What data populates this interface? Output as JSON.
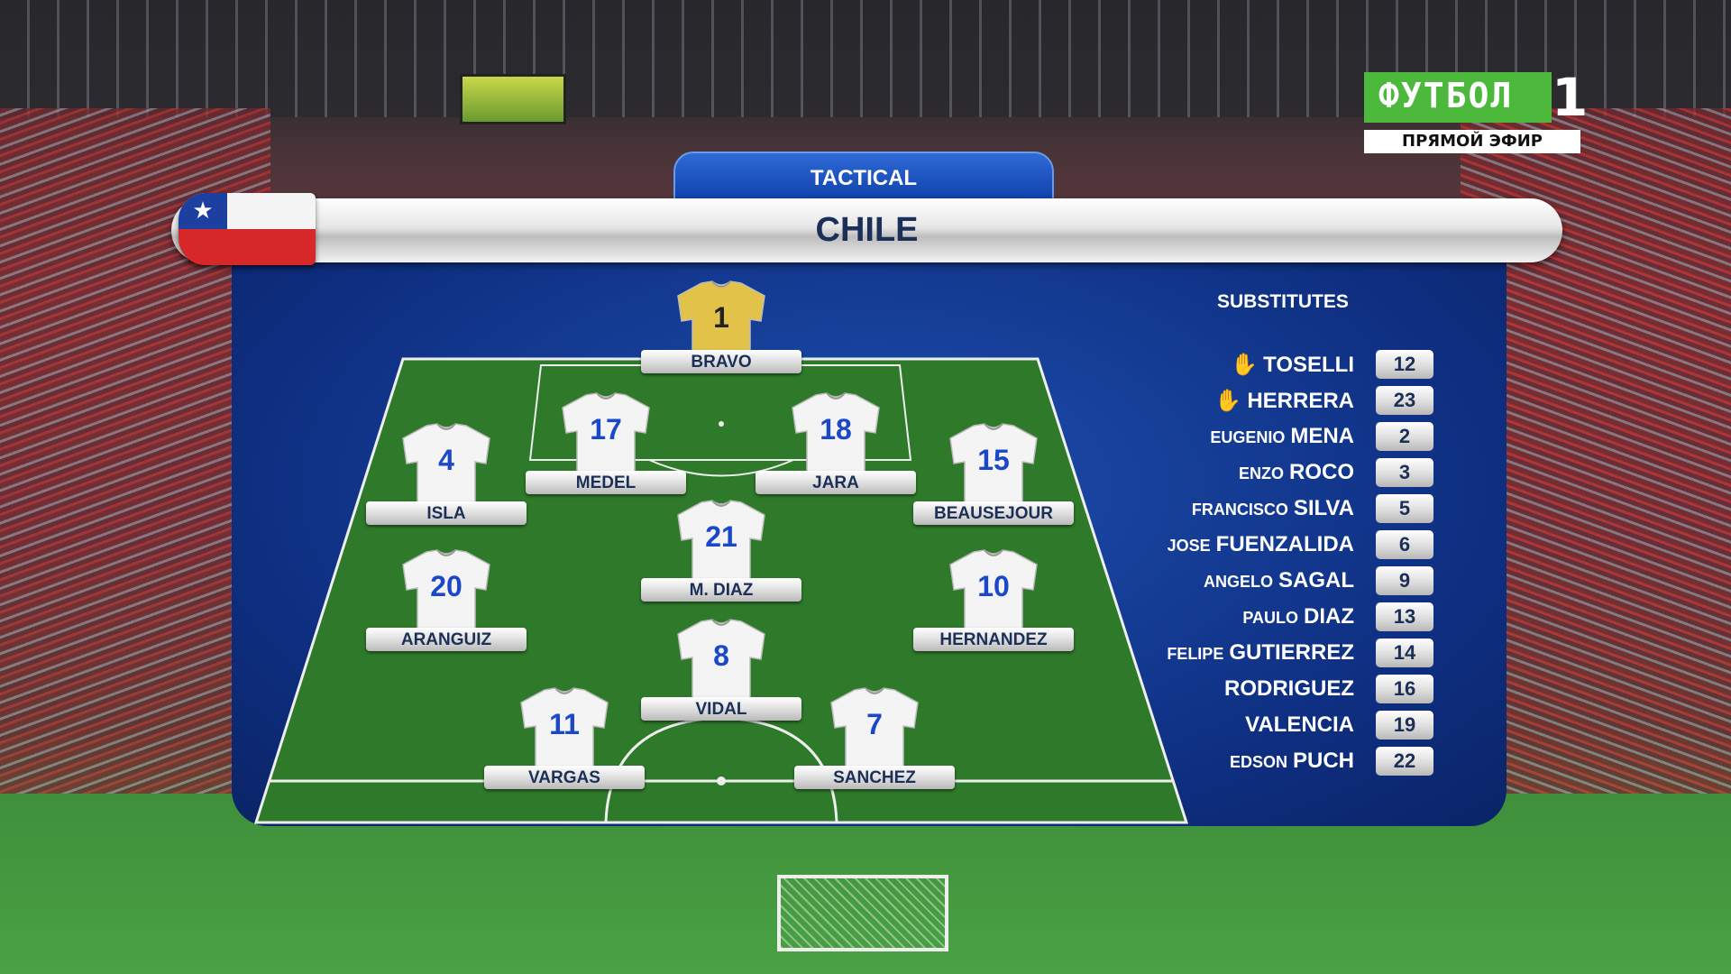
{
  "broadcaster": {
    "channel": "ФУТБОЛ",
    "channel_number": "1",
    "status": "ПРЯМОЙ ЭФИР"
  },
  "header": {
    "tab": "TACTICAL",
    "team": "CHILE",
    "flag_icon": "chile-flag-icon"
  },
  "colors": {
    "panel": "#0e2e80",
    "pitch": "#2f7a2a",
    "label_text": "#1c2f57",
    "number_blue": "#1b48c9",
    "gk_shirt": "#e3c24a"
  },
  "lineup": [
    {
      "number": "1",
      "name": "BRAVO",
      "goalkeeper": true
    },
    {
      "number": "17",
      "name": "MEDEL"
    },
    {
      "number": "18",
      "name": "JARA"
    },
    {
      "number": "4",
      "name": "ISLA"
    },
    {
      "number": "15",
      "name": "BEAUSEJOUR"
    },
    {
      "number": "21",
      "name": "M. DIAZ"
    },
    {
      "number": "20",
      "name": "ARANGUIZ"
    },
    {
      "number": "10",
      "name": "HERNANDEZ"
    },
    {
      "number": "8",
      "name": "VIDAL"
    },
    {
      "number": "11",
      "name": "VARGAS"
    },
    {
      "number": "7",
      "name": "SANCHEZ"
    }
  ],
  "substitutes": {
    "title": "SUBSTITUTES",
    "items": [
      {
        "first": "",
        "last": "TOSELLI",
        "number": "12",
        "goalkeeper": true
      },
      {
        "first": "",
        "last": "HERRERA",
        "number": "23",
        "goalkeeper": true
      },
      {
        "first": "EUGENIO",
        "last": "MENA",
        "number": "2"
      },
      {
        "first": "ENZO",
        "last": "ROCO",
        "number": "3"
      },
      {
        "first": "FRANCISCO",
        "last": "SILVA",
        "number": "5"
      },
      {
        "first": "JOSE",
        "last": "FUENZALIDA",
        "number": "6"
      },
      {
        "first": "ANGELO",
        "last": "SAGAL",
        "number": "9"
      },
      {
        "first": "PAULO",
        "last": "DIAZ",
        "number": "13"
      },
      {
        "first": "FELIPE",
        "last": "GUTIERREZ",
        "number": "14"
      },
      {
        "first": "",
        "last": "RODRIGUEZ",
        "number": "16"
      },
      {
        "first": "",
        "last": "VALENCIA",
        "number": "19"
      },
      {
        "first": "EDSON",
        "last": "PUCH",
        "number": "22"
      }
    ]
  }
}
